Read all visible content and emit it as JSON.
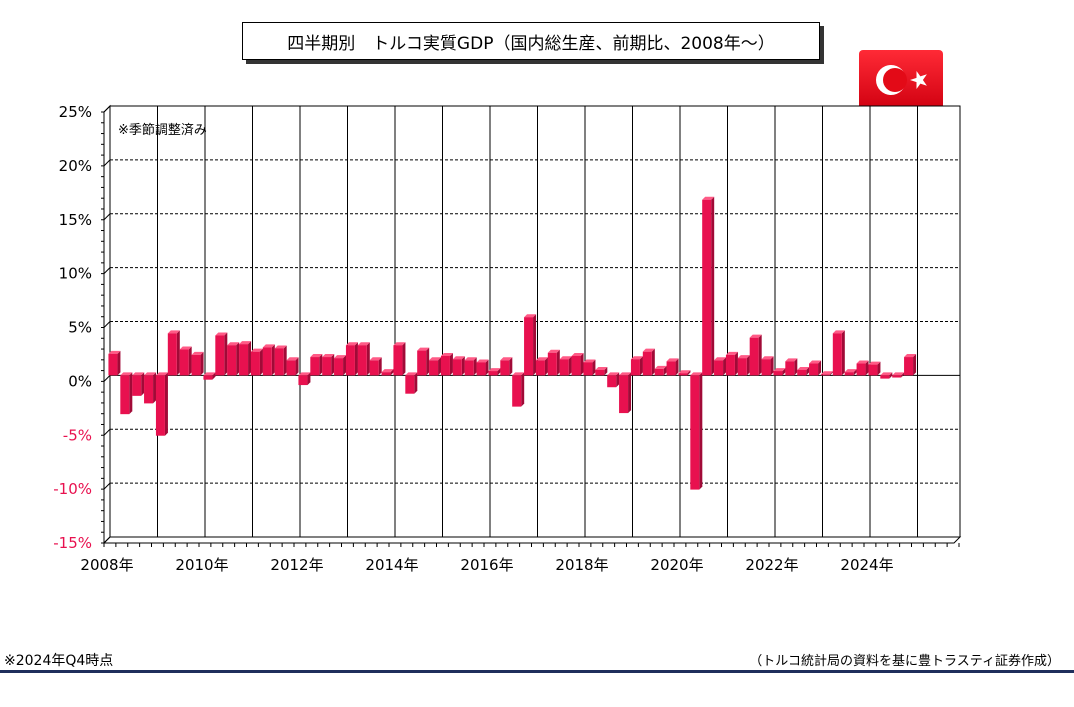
{
  "title": "四半期別　トルコ実質GDP（国内総生産、前期比、2008年～）",
  "chart_data": {
    "type": "bar",
    "title": "四半期別　トルコ実質GDP（国内総生産、前期比、2008年～）",
    "annotation": "※季節調整済み",
    "ylim": [
      -15,
      25
    ],
    "y_ticks": [
      25,
      20,
      15,
      10,
      5,
      0,
      -5,
      -10,
      -15
    ],
    "y_tick_labels": [
      "25%",
      "20%",
      "15%",
      "10%",
      "5%",
      "0%",
      "-5%",
      "-10%",
      "-15%"
    ],
    "x_tick_labels": [
      "2008年",
      "2010年",
      "2012年",
      "2014年",
      "2016年",
      "2018年",
      "2020年",
      "2022年",
      "2024年"
    ],
    "grid": true,
    "bar_color": "#e8114f",
    "negative_tick_color": "#e8114f",
    "series": [
      {
        "values": [
          2.0,
          -3.6,
          -1.9,
          -2.6,
          -5.6,
          3.9,
          2.4,
          1.9,
          -0.4,
          3.7,
          2.8,
          2.9,
          2.2,
          2.6,
          2.5,
          1.4,
          -0.9,
          1.7,
          1.7,
          1.6,
          2.8,
          2.8,
          1.4,
          0.3,
          2.8,
          -1.7,
          2.3,
          1.4,
          1.8,
          1.5,
          1.4,
          1.2,
          0.4,
          1.4,
          -2.9,
          5.4,
          1.4,
          2.1,
          1.5,
          1.8,
          1.2,
          0.5,
          -1.1,
          -3.5,
          1.5,
          2.2,
          0.6,
          1.3,
          0.2,
          -10.6,
          16.3,
          1.4,
          1.9,
          1.6,
          3.5,
          1.5,
          0.4,
          1.3,
          0.5,
          1.1,
          0.1,
          3.9,
          0.3,
          1.1,
          1.0,
          -0.3,
          -0.2,
          1.7
        ]
      }
    ]
  },
  "footer": {
    "note": "※2024年Q4時点",
    "source": "（トルコ統計局の資料を基に豊トラスティ証券作成）"
  },
  "flag": {
    "name": "turkey-flag",
    "color": "#e30a17"
  }
}
